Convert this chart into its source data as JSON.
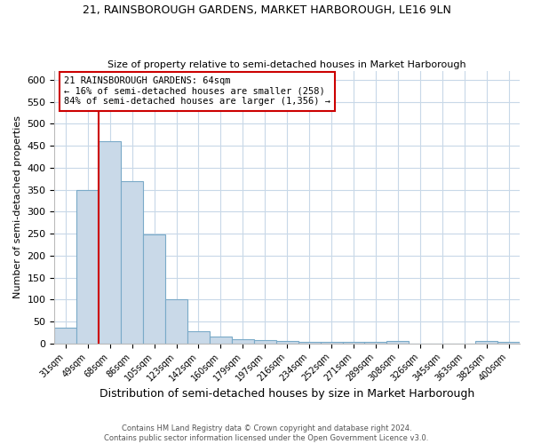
{
  "title1": "21, RAINSBOROUGH GARDENS, MARKET HARBOROUGH, LE16 9LN",
  "title2": "Size of property relative to semi-detached houses in Market Harborough",
  "xlabel": "Distribution of semi-detached houses by size in Market Harborough",
  "ylabel": "Number of semi-detached properties",
  "footer1": "Contains HM Land Registry data © Crown copyright and database right 2024.",
  "footer2": "Contains public sector information licensed under the Open Government Licence v3.0.",
  "categories": [
    "31sqm",
    "49sqm",
    "68sqm",
    "86sqm",
    "105sqm",
    "123sqm",
    "142sqm",
    "160sqm",
    "179sqm",
    "197sqm",
    "216sqm",
    "234sqm",
    "252sqm",
    "271sqm",
    "289sqm",
    "308sqm",
    "326sqm",
    "345sqm",
    "363sqm",
    "382sqm",
    "400sqm"
  ],
  "values": [
    35,
    350,
    460,
    370,
    248,
    100,
    28,
    15,
    10,
    7,
    5,
    4,
    4,
    4,
    4,
    5,
    0,
    0,
    0,
    5,
    4
  ],
  "bar_color": "#c9d9e8",
  "bar_edge_color": "#7aaac8",
  "ylim": [
    0,
    620
  ],
  "yticks": [
    0,
    50,
    100,
    150,
    200,
    250,
    300,
    350,
    400,
    450,
    500,
    550,
    600
  ],
  "pct_smaller": 16,
  "count_smaller": 258,
  "pct_larger": 84,
  "count_larger": 1356,
  "vline_color": "#cc0000",
  "annotation_box_edge": "#cc0000",
  "background_color": "#ffffff",
  "grid_color": "#c8d8e8"
}
